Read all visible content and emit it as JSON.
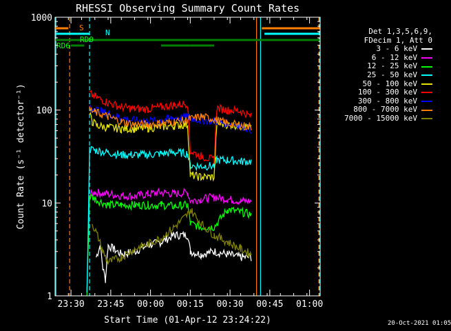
{
  "chart_data": {
    "type": "line",
    "title": "RHESSI Observing Summary Count Rates",
    "xlabel": "Start Time (01-Apr-12 23:24:22)",
    "ylabel": "Count Rate (s⁻¹ detector⁻¹)",
    "x_ticks": [
      "23:30",
      "23:45",
      "00:00",
      "00:15",
      "00:30",
      "00:45",
      "01:00"
    ],
    "x_tick_minutes": [
      6,
      21,
      36,
      51,
      66,
      81,
      96
    ],
    "xlim_minutes": [
      0,
      100
    ],
    "y_scale": "log",
    "ylim": [
      1,
      1000
    ],
    "y_ticks": [
      "1",
      "10",
      "100",
      "1000"
    ],
    "legend_header": [
      "Det 1,3,5,6,9,",
      "FDecim 1, Att 0"
    ],
    "legend_placement": "right",
    "series": [
      {
        "name": "3 - 6 keV",
        "color": "#ffffff",
        "points": [
          [
            15.5,
            2.6
          ],
          [
            17,
            3.5
          ],
          [
            18,
            2
          ],
          [
            19,
            1.5
          ],
          [
            20,
            3.5
          ],
          [
            22,
            3.2
          ],
          [
            25,
            2.8
          ],
          [
            30,
            3
          ],
          [
            35,
            3.5
          ],
          [
            40,
            3.8
          ],
          [
            45,
            4.5
          ],
          [
            50,
            4.5
          ],
          [
            51,
            3
          ],
          [
            55,
            2.8
          ],
          [
            60,
            3
          ],
          [
            65,
            2.8
          ],
          [
            70,
            2.6
          ],
          [
            74,
            2.6
          ]
        ]
      },
      {
        "name": "6 - 12 keV",
        "color": "#ff00ff",
        "points": [
          [
            13,
            12
          ],
          [
            15,
            13
          ],
          [
            20,
            12.5
          ],
          [
            25,
            12
          ],
          [
            30,
            11.8
          ],
          [
            35,
            12.5
          ],
          [
            40,
            13
          ],
          [
            45,
            12.5
          ],
          [
            50,
            13
          ],
          [
            51,
            10.5
          ],
          [
            55,
            11
          ],
          [
            60,
            11.5
          ],
          [
            65,
            11
          ],
          [
            70,
            10.5
          ],
          [
            74,
            10.5
          ]
        ]
      },
      {
        "name": "12 - 25 keV",
        "color": "#00ff00",
        "points": [
          [
            12,
            1
          ],
          [
            13,
            12
          ],
          [
            15,
            11
          ],
          [
            20,
            9.5
          ],
          [
            25,
            9.5
          ],
          [
            30,
            9.5
          ],
          [
            35,
            9.5
          ],
          [
            40,
            9.5
          ],
          [
            45,
            9.2
          ],
          [
            50,
            9.5
          ],
          [
            51,
            6
          ],
          [
            55,
            5.5
          ],
          [
            60,
            5.5
          ],
          [
            65,
            8.5
          ],
          [
            70,
            8
          ],
          [
            74,
            7.5
          ]
        ]
      },
      {
        "name": "25 - 50 keV",
        "color": "#00ffff",
        "points": [
          [
            12,
            1
          ],
          [
            13,
            38
          ],
          [
            15,
            37
          ],
          [
            20,
            35
          ],
          [
            25,
            33
          ],
          [
            30,
            33
          ],
          [
            35,
            33
          ],
          [
            40,
            34
          ],
          [
            45,
            35
          ],
          [
            50,
            34
          ],
          [
            51,
            25
          ],
          [
            55,
            25
          ],
          [
            60,
            25
          ],
          [
            61,
            29
          ],
          [
            65,
            29
          ],
          [
            70,
            28
          ],
          [
            74,
            28
          ]
        ]
      },
      {
        "name": "50 - 100 keV",
        "color": "#e6e600",
        "points": [
          [
            13,
            90
          ],
          [
            14,
            75
          ],
          [
            16,
            68
          ],
          [
            20,
            65
          ],
          [
            25,
            63
          ],
          [
            30,
            63
          ],
          [
            35,
            64
          ],
          [
            40,
            66
          ],
          [
            45,
            68
          ],
          [
            50,
            70
          ],
          [
            51,
            20
          ],
          [
            55,
            19
          ],
          [
            60,
            19
          ],
          [
            61,
            72
          ],
          [
            65,
            70
          ],
          [
            70,
            68
          ],
          [
            74,
            65
          ]
        ]
      },
      {
        "name": "100 - 300 keV",
        "color": "#ff0000",
        "points": [
          [
            13,
            150
          ],
          [
            15,
            140
          ],
          [
            20,
            120
          ],
          [
            25,
            108
          ],
          [
            30,
            103
          ],
          [
            35,
            103
          ],
          [
            40,
            108
          ],
          [
            45,
            113
          ],
          [
            50,
            118
          ],
          [
            51,
            36
          ],
          [
            55,
            32
          ],
          [
            60,
            29
          ],
          [
            61,
            105
          ],
          [
            65,
            100
          ],
          [
            70,
            98
          ],
          [
            74,
            85
          ]
        ]
      },
      {
        "name": "300 - 800 keV",
        "color": "#0000ff",
        "points": [
          [
            13,
            110
          ],
          [
            15,
            102
          ],
          [
            20,
            92
          ],
          [
            25,
            82
          ],
          [
            30,
            77
          ],
          [
            35,
            76
          ],
          [
            40,
            78
          ],
          [
            45,
            82
          ],
          [
            50,
            85
          ],
          [
            51,
            82
          ],
          [
            55,
            78
          ],
          [
            60,
            76
          ],
          [
            61,
            75
          ],
          [
            65,
            72
          ],
          [
            70,
            68
          ],
          [
            74,
            62
          ]
        ]
      },
      {
        "name": "800 - 7000 keV",
        "color": "#ff8000",
        "points": [
          [
            13,
            100
          ],
          [
            15,
            95
          ],
          [
            20,
            85
          ],
          [
            25,
            75
          ],
          [
            30,
            70
          ],
          [
            35,
            70
          ],
          [
            40,
            72
          ],
          [
            45,
            75
          ],
          [
            50,
            78
          ],
          [
            51,
            80
          ],
          [
            55,
            85
          ],
          [
            60,
            80
          ],
          [
            61,
            78
          ],
          [
            65,
            72
          ],
          [
            70,
            68
          ],
          [
            74,
            66
          ]
        ]
      },
      {
        "name": "7000 - 15000 keV",
        "color": "#808000",
        "points": [
          [
            14,
            6
          ],
          [
            16,
            4.5
          ],
          [
            18,
            3
          ],
          [
            20,
            2.3
          ],
          [
            25,
            2.6
          ],
          [
            30,
            3.2
          ],
          [
            35,
            3.6
          ],
          [
            40,
            4.2
          ],
          [
            45,
            5.5
          ],
          [
            50,
            7.5
          ],
          [
            51,
            8.5
          ],
          [
            55,
            6
          ],
          [
            60,
            4.5
          ],
          [
            65,
            3.8
          ],
          [
            70,
            3.2
          ],
          [
            74,
            2.8
          ]
        ]
      }
    ],
    "annotations": [
      {
        "text": "S",
        "color": "#ff8000"
      },
      {
        "text": "N",
        "color": "#00ffff"
      },
      {
        "text": "RD0",
        "color": "#00ff00"
      },
      {
        "text": "RD6",
        "color": "#00ff00"
      }
    ],
    "flag_bars": [
      {
        "color": "#ff8000",
        "y_row": 0,
        "segments": [
          [
            0,
            5
          ],
          [
            78,
            100
          ]
        ]
      },
      {
        "color": "#00ffff",
        "y_row": 1,
        "segments": [
          [
            0,
            13
          ],
          [
            79,
            100
          ]
        ]
      },
      {
        "color": "#008000",
        "y_row": 2,
        "segments": [
          [
            0,
            100
          ]
        ]
      },
      {
        "color": "#008000",
        "y_row": 3,
        "segments": [
          [
            6,
            11
          ],
          [
            40,
            51
          ],
          [
            51,
            60
          ]
        ]
      }
    ],
    "vlines": [
      {
        "minute": 5.5,
        "color": "#ff8000",
        "dash": true
      },
      {
        "minute": 13,
        "color": "#00ffff",
        "dash": true
      },
      {
        "minute": 0.3,
        "color": "#00ffff",
        "dash": false
      },
      {
        "minute": 76,
        "color": "#ff8000",
        "dash": false
      },
      {
        "minute": 77.5,
        "color": "#00ffff",
        "dash": false
      },
      {
        "minute": 99.5,
        "color": "#ff8000",
        "dash": true
      },
      {
        "minute": 99.8,
        "color": "#00ffff",
        "dash": true
      }
    ]
  },
  "footer_date": "20-Oct-2021 01:05"
}
